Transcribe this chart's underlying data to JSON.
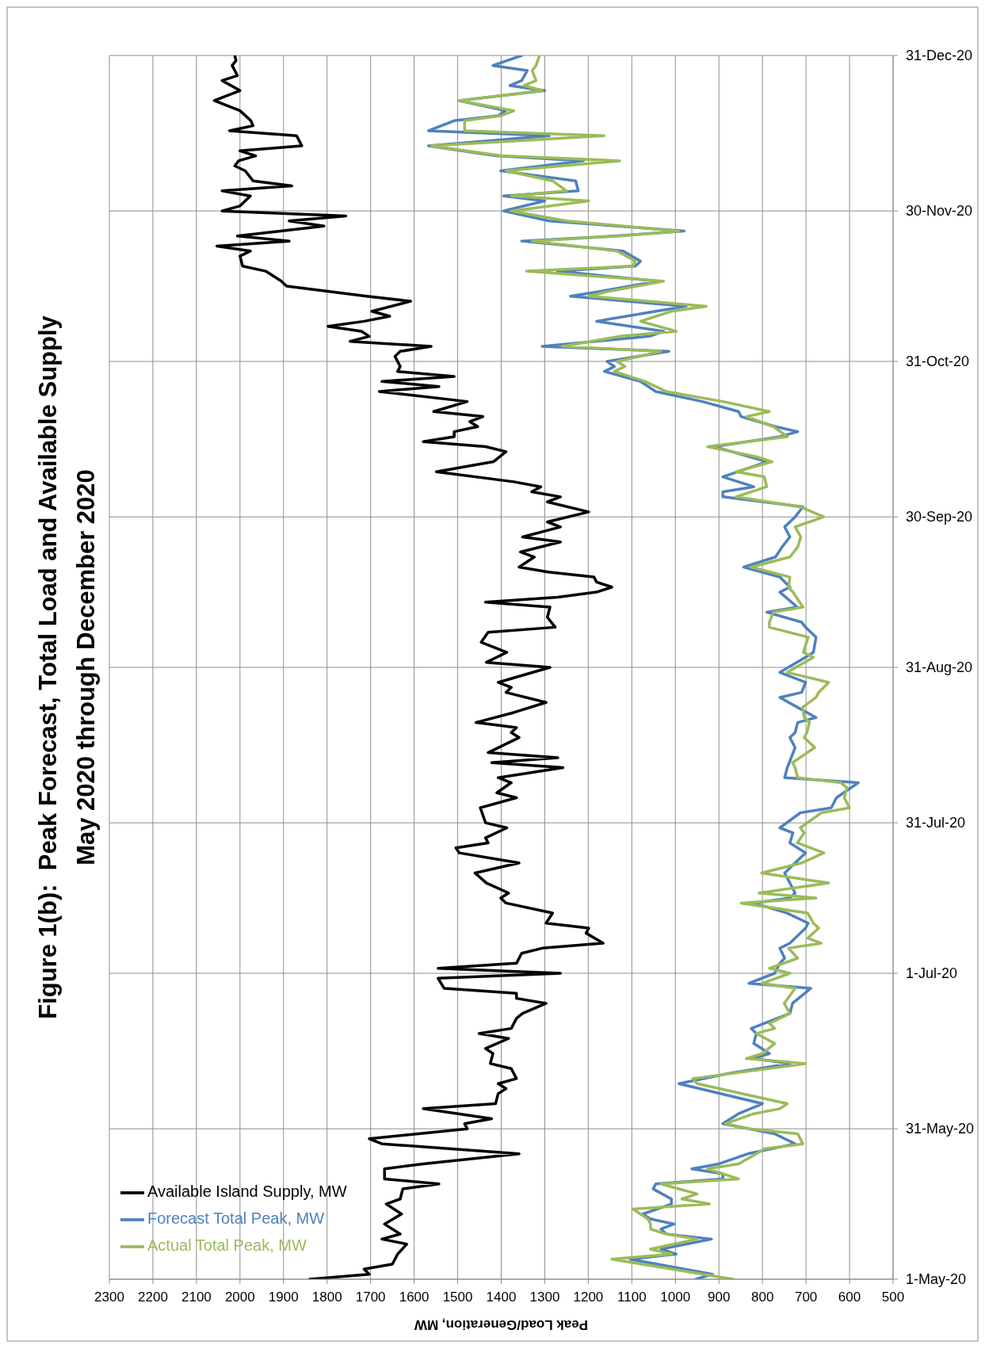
{
  "chart_data": {
    "type": "line",
    "title": "Figure 1(b):  Peak Forecast, Total Load and Available Supply",
    "subtitle": "May 2020 through December 2020",
    "xlabel": "Peak Load/Generation, MW",
    "orientation": "horizontal",
    "ylim": [
      "2020-05-01",
      "2020-12-31"
    ],
    "yticks": [
      {
        "value": "2020-05-01",
        "label": "1-May-20"
      },
      {
        "value": "2020-05-31",
        "label": "31-May-20"
      },
      {
        "value": "2020-07-01",
        "label": "1-Jul-20"
      },
      {
        "value": "2020-07-31",
        "label": "31-Jul-20"
      },
      {
        "value": "2020-08-31",
        "label": "31-Aug-20"
      },
      {
        "value": "2020-09-30",
        "label": "30-Sep-20"
      },
      {
        "value": "2020-10-31",
        "label": "31-Oct-20"
      },
      {
        "value": "2020-11-30",
        "label": "30-Nov-20"
      },
      {
        "value": "2020-12-31",
        "label": "31-Dec-20"
      }
    ],
    "xlim": [
      2300,
      500
    ],
    "xticks": [
      2300,
      2200,
      2100,
      2000,
      1900,
      1800,
      1700,
      1600,
      1500,
      1400,
      1300,
      1200,
      1100,
      1000,
      900,
      800,
      700,
      600,
      500
    ],
    "grid": true,
    "legend": "bottom left",
    "marker": "none",
    "line_style": "solid",
    "series": [
      {
        "name": "Available Island Supply, MW",
        "color": "#000000",
        "x": [
          "2020-05-01",
          "2020-05-02",
          "2020-05-03",
          "2020-05-04",
          "2020-05-06",
          "2020-05-08",
          "2020-05-09",
          "2020-05-10",
          "2020-05-12",
          "2020-05-14",
          "2020-05-16",
          "2020-05-17",
          "2020-05-19",
          "2020-05-20",
          "2020-05-21",
          "2020-05-23",
          "2020-05-24",
          "2020-05-26",
          "2020-05-28",
          "2020-05-29",
          "2020-05-31",
          "2020-06-01",
          "2020-06-02",
          "2020-06-04",
          "2020-06-05",
          "2020-06-07",
          "2020-06-08",
          "2020-06-09",
          "2020-06-10",
          "2020-06-12",
          "2020-06-13",
          "2020-06-15",
          "2020-06-16",
          "2020-06-18",
          "2020-06-19",
          "2020-06-20",
          "2020-06-22",
          "2020-06-23",
          "2020-06-25",
          "2020-06-26",
          "2020-06-27",
          "2020-06-28",
          "2020-06-30",
          "2020-07-01",
          "2020-07-02",
          "2020-07-03",
          "2020-07-05",
          "2020-07-06",
          "2020-07-07",
          "2020-07-09",
          "2020-07-10",
          "2020-07-11",
          "2020-07-13",
          "2020-07-15",
          "2020-07-16",
          "2020-07-17",
          "2020-07-19",
          "2020-07-21",
          "2020-07-23",
          "2020-07-25",
          "2020-07-26",
          "2020-07-27",
          "2020-07-28",
          "2020-07-30",
          "2020-07-31",
          "2020-08-03",
          "2020-08-05",
          "2020-08-06",
          "2020-08-08",
          "2020-08-09",
          "2020-08-11",
          "2020-08-12",
          "2020-08-13",
          "2020-08-14",
          "2020-08-17",
          "2020-08-18",
          "2020-08-19",
          "2020-08-20",
          "2020-08-22",
          "2020-08-24",
          "2020-08-26",
          "2020-08-27",
          "2020-08-28",
          "2020-08-31",
          "2020-09-01",
          "2020-09-03",
          "2020-09-05",
          "2020-09-07",
          "2020-09-08",
          "2020-09-10",
          "2020-09-12",
          "2020-09-13",
          "2020-09-14",
          "2020-09-15",
          "2020-09-16",
          "2020-09-17",
          "2020-09-18",
          "2020-09-19",
          "2020-09-20",
          "2020-09-22",
          "2020-09-23",
          "2020-09-25",
          "2020-09-26",
          "2020-09-28",
          "2020-09-29",
          "2020-10-01",
          "2020-10-03",
          "2020-10-04",
          "2020-10-05",
          "2020-10-06",
          "2020-10-07",
          "2020-10-09",
          "2020-10-11",
          "2020-10-13",
          "2020-10-14",
          "2020-10-15",
          "2020-10-16",
          "2020-10-17",
          "2020-10-18",
          "2020-10-19",
          "2020-10-20",
          "2020-10-21",
          "2020-10-23",
          "2020-10-25",
          "2020-10-26",
          "2020-10-27",
          "2020-10-28",
          "2020-10-29",
          "2020-10-30",
          "2020-11-01",
          "2020-11-02",
          "2020-11-03",
          "2020-11-04",
          "2020-11-05",
          "2020-11-06",
          "2020-11-07",
          "2020-11-08",
          "2020-11-09",
          "2020-11-10",
          "2020-11-12",
          "2020-11-13",
          "2020-11-15",
          "2020-11-16",
          "2020-11-18",
          "2020-11-19",
          "2020-11-21",
          "2020-11-22",
          "2020-11-23",
          "2020-11-24",
          "2020-11-25",
          "2020-11-27",
          "2020-11-28",
          "2020-11-29",
          "2020-11-30",
          "2020-12-01",
          "2020-12-03",
          "2020-12-04",
          "2020-12-05",
          "2020-12-06",
          "2020-12-08",
          "2020-12-09",
          "2020-12-10",
          "2020-12-11",
          "2020-12-12",
          "2020-12-13",
          "2020-12-15",
          "2020-12-16",
          "2020-12-17",
          "2020-12-18",
          "2020-12-20",
          "2020-12-22",
          "2020-12-24",
          "2020-12-26",
          "2020-12-27",
          "2020-12-29",
          "2020-12-30",
          "2020-12-31"
        ],
        "values": [
          1840,
          1703,
          1715,
          1650,
          1638,
          1617,
          1674,
          1632,
          1668,
          1629,
          1664,
          1632,
          1626,
          1543,
          1668,
          1668,
          1579,
          1359,
          1674,
          1703,
          1478,
          1484,
          1422,
          1579,
          1413,
          1407,
          1389,
          1407,
          1365,
          1377,
          1425,
          1419,
          1436,
          1383,
          1451,
          1377,
          1365,
          1351,
          1297,
          1365,
          1365,
          1531,
          1545,
          1264,
          1545,
          1365,
          1353,
          1306,
          1166,
          1205,
          1199,
          1297,
          1282,
          1389,
          1401,
          1383,
          1434,
          1460,
          1359,
          1496,
          1504,
          1430,
          1436,
          1387,
          1436,
          1448,
          1365,
          1410,
          1377,
          1407,
          1258,
          1422,
          1270,
          1430,
          1359,
          1377,
          1365,
          1458,
          1371,
          1297,
          1389,
          1377,
          1407,
          1288,
          1434,
          1387,
          1446,
          1430,
          1276,
          1294,
          1288,
          1436,
          1270,
          1181,
          1146,
          1181,
          1187,
          1292,
          1359,
          1324,
          1356,
          1264,
          1351,
          1264,
          1294,
          1199,
          1294,
          1264,
          1330,
          1309,
          1371,
          1549,
          1418,
          1389,
          1436,
          1579,
          1508,
          1508,
          1454,
          1472,
          1442,
          1555,
          1478,
          1680,
          1543,
          1674,
          1508,
          1638,
          1632,
          1644,
          1632,
          1561,
          1747,
          1703,
          1721,
          1798,
          1715,
          1656,
          1697,
          1608,
          1709,
          1893,
          1905,
          1941,
          1994,
          2000,
          1976,
          2053,
          1887,
          2006,
          1807,
          1887,
          1757,
          2041,
          2000,
          1976,
          2041,
          1881,
          1970,
          1988,
          2012,
          2003,
          1964,
          2000,
          1858,
          1870,
          2024,
          1970,
          1975,
          2000,
          2059,
          2000,
          2041,
          2006,
          2018,
          2009,
          2012
        ]
      },
      {
        "name": "Forecast Total Peak, MW",
        "color": "#4f81bd",
        "x": [
          "2020-05-01",
          "2020-05-02",
          "2020-05-05",
          "2020-05-06",
          "2020-05-07",
          "2020-05-09",
          "2020-05-10",
          "2020-05-11",
          "2020-05-12",
          "2020-05-13",
          "2020-05-14",
          "2020-05-16",
          "2020-05-17",
          "2020-05-19",
          "2020-05-20",
          "2020-05-21",
          "2020-05-22",
          "2020-05-23",
          "2020-05-24",
          "2020-05-26",
          "2020-05-28",
          "2020-05-30",
          "2020-06-01",
          "2020-06-03",
          "2020-06-05",
          "2020-06-09",
          "2020-06-11",
          "2020-06-13",
          "2020-06-14",
          "2020-06-15",
          "2020-06-17",
          "2020-06-19",
          "2020-06-20",
          "2020-06-23",
          "2020-06-25",
          "2020-06-28",
          "2020-06-29",
          "2020-07-01",
          "2020-07-03",
          "2020-07-04",
          "2020-07-06",
          "2020-07-07",
          "2020-07-10",
          "2020-07-11",
          "2020-07-13",
          "2020-07-15",
          "2020-07-16",
          "2020-07-17",
          "2020-07-21",
          "2020-07-23",
          "2020-07-25",
          "2020-07-27",
          "2020-07-29",
          "2020-07-30",
          "2020-08-02",
          "2020-08-03",
          "2020-08-05",
          "2020-08-08",
          "2020-08-09",
          "2020-08-11",
          "2020-08-15",
          "2020-08-17",
          "2020-08-18",
          "2020-08-20",
          "2020-08-21",
          "2020-08-23",
          "2020-08-25",
          "2020-08-26",
          "2020-08-28",
          "2020-08-30",
          "2020-09-02",
          "2020-09-03",
          "2020-09-06",
          "2020-09-08",
          "2020-09-09",
          "2020-09-11",
          "2020-09-12",
          "2020-09-15",
          "2020-09-16",
          "2020-09-18",
          "2020-09-20",
          "2020-09-22",
          "2020-09-24",
          "2020-09-26",
          "2020-09-28",
          "2020-09-30",
          "2020-10-02",
          "2020-10-04",
          "2020-10-05",
          "2020-10-06",
          "2020-10-08",
          "2020-10-11",
          "2020-10-14",
          "2020-10-16",
          "2020-10-17",
          "2020-10-18",
          "2020-10-20",
          "2020-10-21",
          "2020-10-23",
          "2020-10-25",
          "2020-10-27",
          "2020-10-29",
          "2020-10-30",
          "2020-10-31",
          "2020-11-02",
          "2020-11-03",
          "2020-11-05",
          "2020-11-06",
          "2020-11-08",
          "2020-11-10",
          "2020-11-11",
          "2020-11-13",
          "2020-11-14",
          "2020-11-16",
          "2020-11-18",
          "2020-11-19",
          "2020-11-20",
          "2020-11-22",
          "2020-11-24",
          "2020-11-25",
          "2020-11-26",
          "2020-11-28",
          "2020-11-30",
          "2020-12-02",
          "2020-12-03",
          "2020-12-04",
          "2020-12-06",
          "2020-12-08",
          "2020-12-10",
          "2020-12-11",
          "2020-12-13",
          "2020-12-15",
          "2020-12-16",
          "2020-12-18",
          "2020-12-19",
          "2020-12-20",
          "2020-12-22",
          "2020-12-24",
          "2020-12-25",
          "2020-12-26",
          "2020-12-28",
          "2020-12-29",
          "2020-12-31"
        ],
        "values": [
          953,
          915,
          1104,
          998,
          1033,
          917,
          1021,
          1033,
          1003,
          1057,
          1075,
          1009,
          1009,
          1051,
          1045,
          891,
          891,
          962,
          900,
          834,
          725,
          772,
          891,
          855,
          800,
          992,
          879,
          737,
          820,
          784,
          820,
          814,
          826,
          737,
          731,
          689,
          831,
          772,
          760,
          749,
          760,
          737,
          701,
          695,
          743,
          820,
          737,
          725,
          749,
          725,
          701,
          737,
          730,
          760,
          713,
          642,
          630,
          580,
          749,
          743,
          725,
          737,
          725,
          719,
          677,
          719,
          760,
          710,
          701,
          760,
          701,
          683,
          677,
          701,
          710,
          790,
          720,
          760,
          737,
          760,
          843,
          770,
          755,
          737,
          749,
          725,
          707,
          891,
          891,
          820,
          891,
          790,
          910,
          760,
          719,
          770,
          849,
          855,
          938,
          1045,
          1080,
          1163,
          1140,
          1157,
          1015,
          1306,
          1060,
          1027,
          1181,
          1045,
          975,
          1241,
          1170,
          1040,
          1271,
          1092,
          1080,
          1120,
          1353,
          1140,
          980,
          1290,
          1395,
          1300,
          1395,
          1223,
          1229,
          1401,
          1211,
          1413,
          1567,
          1290,
          1567,
          1508,
          1407,
          1390,
          1496,
          1300,
          1380,
          1353,
          1340,
          1419,
          1353
        ]
      },
      {
        "name": "Actual Total Peak, MW",
        "color": "#9bbb59",
        "x": [
          "2020-05-01",
          "2020-05-05",
          "2020-05-06",
          "2020-05-07",
          "2020-05-09",
          "2020-05-10",
          "2020-05-11",
          "2020-05-12",
          "2020-05-13",
          "2020-05-15",
          "2020-05-16",
          "2020-05-17",
          "2020-05-18",
          "2020-05-20",
          "2020-05-21",
          "2020-05-23",
          "2020-05-24",
          "2020-05-26",
          "2020-05-27",
          "2020-05-28",
          "2020-05-30",
          "2020-05-31",
          "2020-06-01",
          "2020-06-03",
          "2020-06-04",
          "2020-06-05",
          "2020-06-09",
          "2020-06-10",
          "2020-06-13",
          "2020-06-14",
          "2020-06-15",
          "2020-06-17",
          "2020-06-19",
          "2020-06-20",
          "2020-06-21",
          "2020-06-23",
          "2020-06-25",
          "2020-06-28",
          "2020-06-29",
          "2020-07-01",
          "2020-07-02",
          "2020-07-04",
          "2020-07-06",
          "2020-07-07",
          "2020-07-08",
          "2020-07-10",
          "2020-07-11",
          "2020-07-13",
          "2020-07-15",
          "2020-07-16",
          "2020-07-17",
          "2020-07-19",
          "2020-07-21",
          "2020-07-23",
          "2020-07-25",
          "2020-07-27",
          "2020-07-29",
          "2020-07-30",
          "2020-08-02",
          "2020-08-03",
          "2020-08-05",
          "2020-08-07",
          "2020-08-08",
          "2020-08-09",
          "2020-08-11",
          "2020-08-12",
          "2020-08-15",
          "2020-08-17",
          "2020-08-18",
          "2020-08-20",
          "2020-08-21",
          "2020-08-23",
          "2020-08-25",
          "2020-08-26",
          "2020-08-28",
          "2020-08-30",
          "2020-09-02",
          "2020-09-03",
          "2020-09-06",
          "2020-09-08",
          "2020-09-09",
          "2020-09-11",
          "2020-09-12",
          "2020-09-15",
          "2020-09-16",
          "2020-09-18",
          "2020-09-20",
          "2020-09-22",
          "2020-09-24",
          "2020-09-26",
          "2020-09-28",
          "2020-09-30",
          "2020-10-02",
          "2020-10-04",
          "2020-10-06",
          "2020-10-08",
          "2020-10-09",
          "2020-10-11",
          "2020-10-12",
          "2020-10-14",
          "2020-10-16",
          "2020-10-18",
          "2020-10-20",
          "2020-10-21",
          "2020-10-23",
          "2020-10-25",
          "2020-10-27",
          "2020-10-29",
          "2020-10-30",
          "2020-10-31",
          "2020-11-02",
          "2020-11-03",
          "2020-11-05",
          "2020-11-06",
          "2020-11-08",
          "2020-11-10",
          "2020-11-11",
          "2020-11-13",
          "2020-11-14",
          "2020-11-16",
          "2020-11-18",
          "2020-11-19",
          "2020-11-20",
          "2020-11-22",
          "2020-11-24",
          "2020-11-25",
          "2020-11-26",
          "2020-11-28",
          "2020-11-30",
          "2020-12-02",
          "2020-12-03",
          "2020-12-04",
          "2020-12-06",
          "2020-12-08",
          "2020-12-10",
          "2020-12-11",
          "2020-12-13",
          "2020-12-15",
          "2020-12-16",
          "2020-12-18",
          "2020-12-19",
          "2020-12-20",
          "2020-12-22",
          "2020-12-24",
          "2020-12-25",
          "2020-12-26",
          "2020-12-28",
          "2020-12-29",
          "2020-12-31"
        ],
        "values": [
          867,
          1146,
          1009,
          1057,
          950,
          1021,
          1057,
          1057,
          1063,
          1098,
          922,
          985,
          950,
          1033,
          855,
          926,
          855,
          814,
          796,
          707,
          719,
          831,
          885,
          820,
          760,
          743,
          950,
          960,
          701,
          837,
          800,
          772,
          814,
          772,
          784,
          737,
          750,
          725,
          800,
          737,
          784,
          719,
          740,
          665,
          696,
          671,
          683,
          696,
          849,
          677,
          808,
          648,
          802,
          710,
          659,
          720,
          704,
          713,
          665,
          600,
          612,
          606,
          620,
          719,
          725,
          731,
          680,
          704,
          698,
          692,
          704,
          708,
          677,
          671,
          648,
          743,
          683,
          706,
          695,
          784,
          784,
          775,
          707,
          730,
          740,
          737,
          826,
          737,
          719,
          712,
          725,
          659,
          713,
          861,
          790,
          796,
          860,
          778,
          814,
          926,
          743,
          775,
          837,
          784,
          891,
          1021,
          1069,
          1140,
          1116,
          1134,
          1033,
          1259,
          1128,
          998,
          1080,
          1009,
          929,
          1199,
          1152,
          1027,
          1342,
          1098,
          1092,
          1134,
          1329,
          1128,
          992,
          1250,
          1377,
          1199,
          1377,
          1250,
          1282,
          1389,
          1128,
          1400,
          1561,
          1164,
          1484,
          1484,
          1400,
          1371,
          1496,
          1306,
          1347,
          1320,
          1329,
          1320,
          1312
        ]
      }
    ]
  }
}
